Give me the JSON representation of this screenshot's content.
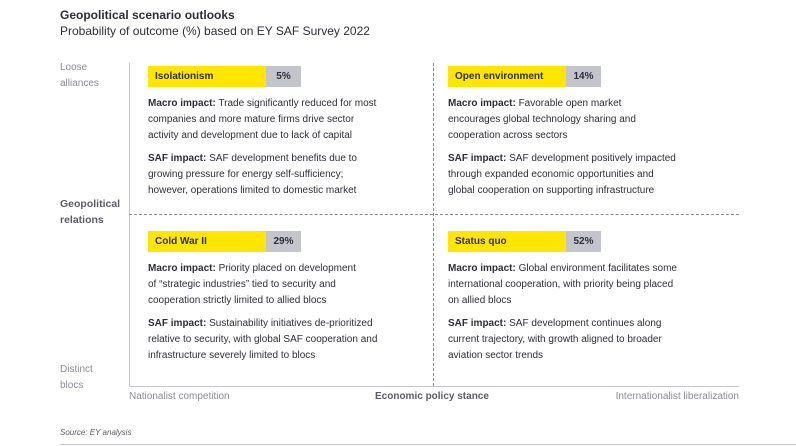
{
  "header": {
    "title": "Geopolitical scenario outlooks",
    "subtitle": "Probability of outcome (%) based on EY SAF Survey 2022"
  },
  "y_axis": {
    "top_label_line1": "Loose",
    "top_label_line2": "alliances",
    "mid_label_line1": "Geopolitical",
    "mid_label_line2": "relations",
    "bottom_label_line1": "Distinct",
    "bottom_label_line2": "blocs"
  },
  "x_axis": {
    "left_label": "Nationalist competition",
    "mid_label": "Economic policy stance",
    "right_label": "Internationalist liberalization"
  },
  "quadrants": [
    {
      "name": "Isolationism",
      "probability": "5%",
      "macro_heading": "Macro impact:",
      "macro_lines": [
        " Trade significantly reduced for most",
        "companies and more mature firms drive sector",
        "activity and development due to lack of capital"
      ],
      "saf_heading": "SAF impact:",
      "saf_lines": [
        " SAF development benefits due to",
        "growing pressure for energy self-sufficiency;",
        "however, operations limited to domestic market"
      ]
    },
    {
      "name": "Open environment",
      "probability": "14%",
      "macro_heading": "Macro impact:",
      "macro_lines": [
        " Favorable open market",
        "encourages global technology sharing and",
        "cooperation across sectors"
      ],
      "saf_heading": "SAF impact:",
      "saf_lines": [
        " SAF development positively impacted",
        "through expanded economic opportunities and",
        "global cooperation on supporting infrastructure"
      ]
    },
    {
      "name": "Cold War II",
      "probability": "29%",
      "macro_heading": "Macro impact:",
      "macro_lines": [
        " Priority placed on development",
        "of “strategic industries” tied to security and",
        "cooperation strictly limited to allied blocs"
      ],
      "saf_heading": "SAF impact:",
      "saf_lines": [
        " Sustainability initiatives de-prioritized",
        "relative to security, with global SAF cooperation and",
        "infrastructure severely limited to blocs"
      ]
    },
    {
      "name": "Status quo",
      "probability": "52%",
      "macro_heading": "Macro impact:",
      "macro_lines": [
        " Global environment facilitates some",
        "international cooperation, with priority being placed",
        "on allied blocs"
      ],
      "saf_heading": "SAF impact:",
      "saf_lines": [
        " SAF development continues along",
        "current trajectory, with growth aligned to broader",
        "aviation sector trends"
      ]
    }
  ],
  "source": "Source: EY analysis",
  "colors": {
    "accent_yellow": "#ffe600",
    "percent_gray": "#c4c4cd",
    "text_dark": "#2e2e38",
    "axis_label_gray": "#8b8b96"
  }
}
